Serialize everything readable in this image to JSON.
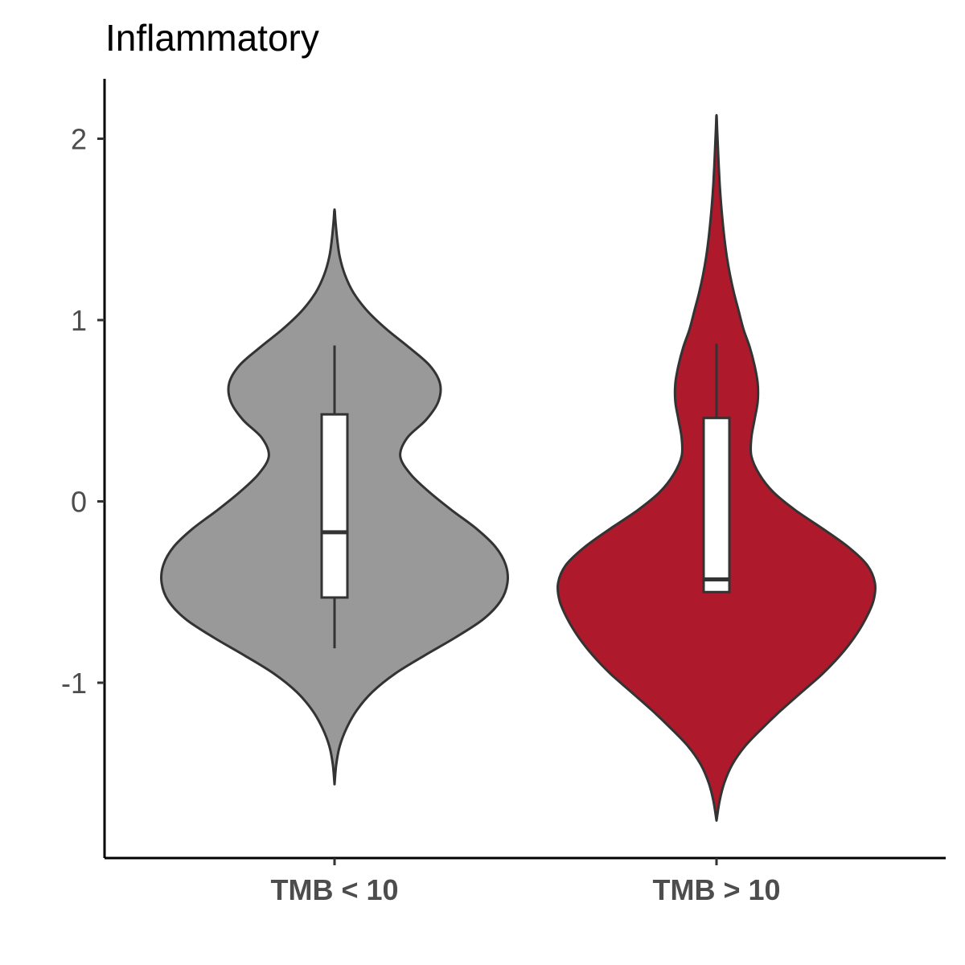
{
  "chart_data": {
    "type": "violin",
    "title": "Inflammatory",
    "xlabel": "",
    "ylabel": "",
    "categories": [
      "TMB < 10",
      "TMB > 10"
    ],
    "yticks": [
      -1,
      0,
      1,
      2
    ],
    "ytick_labels": [
      "-1",
      "0",
      "1",
      "2"
    ],
    "ylim": [
      -1.9,
      2.35
    ],
    "grid": false,
    "legend": "none",
    "series": [
      {
        "category": "TMB < 10",
        "color": "#999999",
        "min": -1.56,
        "max": 1.61,
        "box": {
          "whisker_low": -0.81,
          "q1": -0.53,
          "median": -0.17,
          "q3": 0.48,
          "whisker_high": 0.86
        },
        "density": [
          [
            -1.56,
            0.0
          ],
          [
            -1.45,
            0.01
          ],
          [
            -1.35,
            0.03
          ],
          [
            -1.25,
            0.07
          ],
          [
            -1.15,
            0.13
          ],
          [
            -1.05,
            0.22
          ],
          [
            -0.95,
            0.35
          ],
          [
            -0.85,
            0.52
          ],
          [
            -0.75,
            0.7
          ],
          [
            -0.65,
            0.86
          ],
          [
            -0.55,
            0.96
          ],
          [
            -0.45,
            1.0
          ],
          [
            -0.35,
            0.99
          ],
          [
            -0.25,
            0.93
          ],
          [
            -0.15,
            0.82
          ],
          [
            -0.05,
            0.68
          ],
          [
            0.05,
            0.55
          ],
          [
            0.15,
            0.44
          ],
          [
            0.25,
            0.38
          ],
          [
            0.35,
            0.42
          ],
          [
            0.45,
            0.53
          ],
          [
            0.55,
            0.6
          ],
          [
            0.65,
            0.61
          ],
          [
            0.75,
            0.55
          ],
          [
            0.85,
            0.43
          ],
          [
            0.95,
            0.3
          ],
          [
            1.05,
            0.19
          ],
          [
            1.15,
            0.11
          ],
          [
            1.25,
            0.06
          ],
          [
            1.35,
            0.03
          ],
          [
            1.45,
            0.015
          ],
          [
            1.55,
            0.005
          ],
          [
            1.61,
            0.0
          ]
        ]
      },
      {
        "category": "TMB > 10",
        "color": "#ae1a2c",
        "min": -1.76,
        "max": 2.13,
        "box": {
          "whisker_low": -0.5,
          "q1": -0.5,
          "median": -0.43,
          "q3": 0.46,
          "whisker_high": 0.87
        },
        "density": [
          [
            -1.76,
            0.0
          ],
          [
            -1.65,
            0.02
          ],
          [
            -1.55,
            0.05
          ],
          [
            -1.45,
            0.1
          ],
          [
            -1.35,
            0.18
          ],
          [
            -1.25,
            0.29
          ],
          [
            -1.15,
            0.41
          ],
          [
            -1.05,
            0.54
          ],
          [
            -0.95,
            0.67
          ],
          [
            -0.85,
            0.78
          ],
          [
            -0.75,
            0.87
          ],
          [
            -0.65,
            0.94
          ],
          [
            -0.55,
            0.99
          ],
          [
            -0.45,
            1.0
          ],
          [
            -0.35,
            0.95
          ],
          [
            -0.25,
            0.83
          ],
          [
            -0.15,
            0.67
          ],
          [
            -0.05,
            0.5
          ],
          [
            0.05,
            0.36
          ],
          [
            0.15,
            0.27
          ],
          [
            0.25,
            0.22
          ],
          [
            0.35,
            0.22
          ],
          [
            0.45,
            0.24
          ],
          [
            0.55,
            0.26
          ],
          [
            0.65,
            0.26
          ],
          [
            0.75,
            0.24
          ],
          [
            0.85,
            0.21
          ],
          [
            0.95,
            0.17
          ],
          [
            1.05,
            0.14
          ],
          [
            1.15,
            0.11
          ],
          [
            1.25,
            0.085
          ],
          [
            1.35,
            0.065
          ],
          [
            1.45,
            0.05
          ],
          [
            1.55,
            0.038
          ],
          [
            1.65,
            0.028
          ],
          [
            1.75,
            0.02
          ],
          [
            1.85,
            0.014
          ],
          [
            1.95,
            0.009
          ],
          [
            2.05,
            0.004
          ],
          [
            2.13,
            0.0
          ]
        ]
      }
    ]
  }
}
